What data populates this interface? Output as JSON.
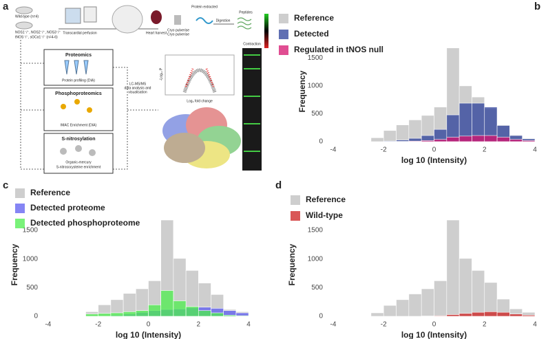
{
  "panel_a": {
    "letter": "a",
    "mice_wt": "Wild-type (n=4)",
    "mice_ko": "NOS1⁻/⁻, NOS2⁻/⁻, NOS3⁻/⁻",
    "mice_ko2": "tNOS⁻/⁻, sGCα1⁻/⁻ (n=4-6)",
    "step_perfusion": "Transcardial perfusion",
    "step_heart": "Heart harvest",
    "step_cryo": "Cryo pulverise",
    "step_protein": "Protein extracted",
    "step_digestion": "Digestion",
    "step_peptides": "Peptides",
    "box_proteomics": "Proteomics",
    "box_proteomics_sub": "Protein profiling (DIA)",
    "box_phospho": "Phosphoproteomics",
    "box_phospho_sub": "IMAC  Enrichment (DIA)",
    "box_snitro": "S-nitrosylation",
    "box_snitro_sub": "Organic-mercury",
    "box_snitro_sub2": "S-nitrosocysteine enrichment",
    "lcms": "LC-MS/MS",
    "lcms2": "data analysis and",
    "lcms3": "visualisation",
    "volcano_y": "-Log₁₀ P",
    "volcano_x": "Log₂ fold change",
    "heatmap_title": "Contraction"
  },
  "chart_data": [
    {
      "type": "histogram",
      "letter": "b",
      "xlabel": "log 10 (Intensity)",
      "ylabel": "Frequency",
      "bins": [
        -2.5,
        -2,
        -1.5,
        -1,
        -0.5,
        0,
        0.5,
        1,
        1.5,
        2,
        2.5,
        3,
        3.5,
        4
      ],
      "xlim": [
        -4.3,
        4.3
      ],
      "xticks": [
        -4,
        -2,
        0,
        2,
        4
      ],
      "ylim": [
        0,
        1800
      ],
      "yticks": [
        0,
        500,
        1000,
        1500
      ],
      "series": [
        {
          "name": "Reference",
          "color": "#b4b4b4",
          "values": [
            70,
            200,
            300,
            390,
            470,
            620,
            1680,
            1000,
            800,
            590,
            300,
            120,
            60
          ]
        },
        {
          "name": "Detected",
          "color": "#2b3f9a",
          "values": [
            0,
            10,
            30,
            60,
            110,
            220,
            480,
            690,
            690,
            620,
            290,
            110,
            50
          ]
        },
        {
          "name": "Regulated in tNOS null",
          "color": "#d6126e",
          "values": [
            0,
            0,
            5,
            10,
            20,
            40,
            80,
            100,
            110,
            110,
            80,
            40,
            20
          ]
        }
      ]
    },
    {
      "type": "histogram",
      "letter": "c",
      "xlabel": "log 10 (Intensity)",
      "ylabel": "Frequency",
      "bins": [
        -2.5,
        -2,
        -1.5,
        -1,
        -0.5,
        0,
        0.5,
        1,
        1.5,
        2,
        2.5,
        3,
        3.5,
        4
      ],
      "xlim": [
        -4.3,
        4.3
      ],
      "xticks": [
        -4,
        -2,
        0,
        2,
        4
      ],
      "ylim": [
        0,
        1800
      ],
      "yticks": [
        0,
        500,
        1000,
        1500
      ],
      "series": [
        {
          "name": "Reference",
          "color": "#b4b4b4",
          "values": [
            80,
            200,
            290,
            400,
            480,
            620,
            1680,
            1010,
            800,
            580,
            380,
            120,
            80
          ]
        },
        {
          "name": "Detected proteome",
          "color": "#5c5cf0",
          "values": [
            0,
            5,
            20,
            40,
            70,
            100,
            120,
            130,
            150,
            160,
            140,
            100,
            60
          ]
        },
        {
          "name": "Detected phosphoproteome",
          "color": "#4cee4c",
          "values": [
            40,
            50,
            60,
            80,
            100,
            200,
            450,
            270,
            170,
            100,
            60,
            20,
            10
          ]
        }
      ]
    },
    {
      "type": "histogram",
      "letter": "d",
      "xlabel": "log 10 (Intensity)",
      "ylabel": "Frequency",
      "bins": [
        -2.5,
        -2,
        -1.5,
        -1,
        -0.5,
        0,
        0.5,
        1,
        1.5,
        2,
        2.5,
        3,
        3.5,
        4
      ],
      "xlim": [
        -4.3,
        4.3
      ],
      "xticks": [
        -4,
        -2,
        0,
        2,
        4
      ],
      "ylim": [
        0,
        1800
      ],
      "yticks": [
        0,
        500,
        1000,
        1500
      ],
      "series": [
        {
          "name": "Reference",
          "color": "#b4b4b4",
          "values": [
            60,
            190,
            290,
            390,
            480,
            620,
            1680,
            1010,
            800,
            590,
            300,
            130,
            70
          ]
        },
        {
          "name": "Wild-type",
          "color": "#cc1f1f",
          "values": [
            0,
            0,
            0,
            0,
            5,
            10,
            30,
            50,
            70,
            80,
            70,
            40,
            20
          ]
        }
      ]
    }
  ]
}
